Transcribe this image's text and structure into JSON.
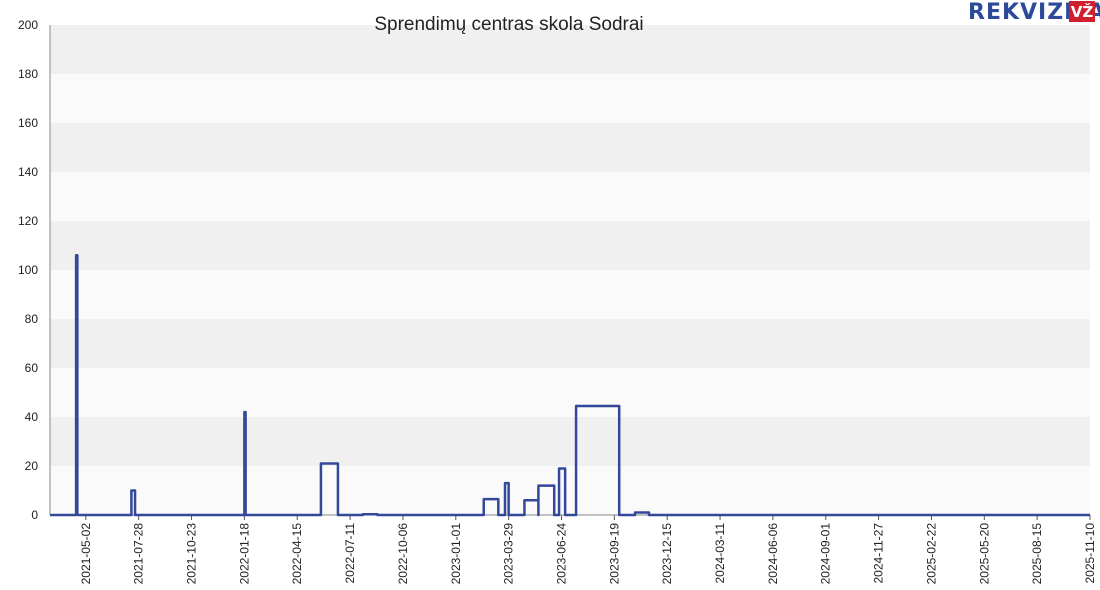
{
  "logo": {
    "text": "REKVIZITAI",
    "badge": "VŽ",
    "color": "#2c4a9a",
    "badge_color": "#d0202e"
  },
  "chart_data": {
    "type": "line",
    "title": "Sprendimų centras skola Sodrai",
    "xlabel": "",
    "ylabel": "",
    "ylim": [
      0,
      200
    ],
    "y_ticks": [
      0,
      20,
      40,
      60,
      80,
      100,
      120,
      140,
      160,
      180,
      200
    ],
    "x_range": [
      "2021-03-04",
      "2025-11-10"
    ],
    "x_tick_labels": [
      "2021-05-02",
      "2021-07-28",
      "2021-10-23",
      "2022-01-18",
      "2022-04-15",
      "2022-07-11",
      "2022-10-06",
      "2023-01-01",
      "2023-03-29",
      "2023-06-24",
      "2023-09-19",
      "2023-12-15",
      "2024-03-11",
      "2024-06-06",
      "2024-09-01",
      "2024-11-27",
      "2025-02-22",
      "2025-05-20",
      "2025-08-15",
      "2025-11-10"
    ],
    "grid": "horizontal bands",
    "line_color": "#34489a",
    "series": [
      {
        "values": [
          [
            "2021-03-04",
            0
          ],
          [
            "2021-04-16",
            0
          ],
          [
            "2021-04-16",
            106
          ],
          [
            "2021-04-18",
            106
          ],
          [
            "2021-04-18",
            0
          ],
          [
            "2021-07-16",
            0
          ],
          [
            "2021-07-16",
            10
          ],
          [
            "2021-07-22",
            10
          ],
          [
            "2021-07-22",
            0
          ],
          [
            "2022-01-18",
            0
          ],
          [
            "2022-01-18",
            42
          ],
          [
            "2022-01-20",
            42
          ],
          [
            "2022-01-20",
            0
          ],
          [
            "2022-05-24",
            0
          ],
          [
            "2022-05-24",
            21
          ],
          [
            "2022-06-21",
            21
          ],
          [
            "2022-06-21",
            0
          ],
          [
            "2022-08-01",
            0
          ],
          [
            "2022-08-01",
            0.3
          ],
          [
            "2022-08-25",
            0.3
          ],
          [
            "2022-08-25",
            0
          ],
          [
            "2023-02-16",
            0
          ],
          [
            "2023-02-16",
            6.5
          ],
          [
            "2023-03-12",
            6.5
          ],
          [
            "2023-03-12",
            0
          ],
          [
            "2023-03-23",
            0
          ],
          [
            "2023-03-23",
            13
          ],
          [
            "2023-03-29",
            13
          ],
          [
            "2023-03-29",
            0
          ],
          [
            "2023-04-24",
            0
          ],
          [
            "2023-04-24",
            6
          ],
          [
            "2023-05-17",
            6
          ],
          [
            "2023-05-17",
            0
          ],
          [
            "2023-05-17",
            12
          ],
          [
            "2023-06-12",
            12
          ],
          [
            "2023-06-12",
            0
          ],
          [
            "2023-06-20",
            0
          ],
          [
            "2023-06-20",
            19
          ],
          [
            "2023-06-30",
            19
          ],
          [
            "2023-06-30",
            0
          ],
          [
            "2023-07-18",
            0
          ],
          [
            "2023-07-18",
            44.5
          ],
          [
            "2023-09-27",
            44.5
          ],
          [
            "2023-09-27",
            0
          ],
          [
            "2023-10-23",
            0
          ],
          [
            "2023-10-23",
            1
          ],
          [
            "2023-11-15",
            1
          ],
          [
            "2023-11-15",
            0
          ],
          [
            "2025-11-10",
            0
          ]
        ]
      }
    ]
  }
}
